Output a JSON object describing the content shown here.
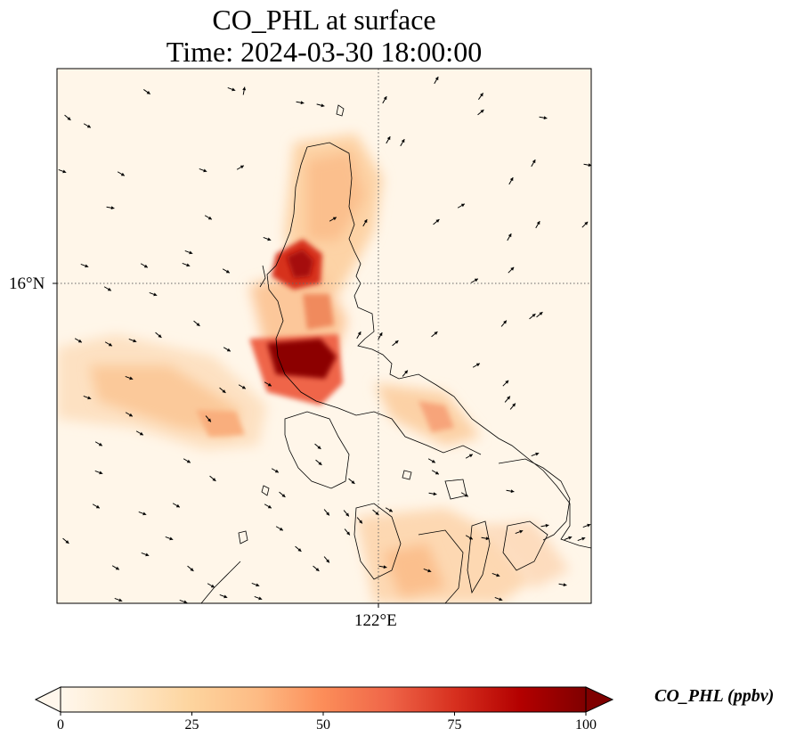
{
  "figure": {
    "title_line1": "CO_PHL at surface",
    "title_line2": "Time: 2024-03-30 18:00:00"
  },
  "map": {
    "variable": "CO_PHL",
    "level": "surface",
    "lat_tick_label": "16°N",
    "lon_tick_label": "122°E",
    "gridlines": "dotted",
    "field_colormap": "OrRd",
    "wind_vectors": "black quiver arrows",
    "coastline_color": "#000000"
  },
  "colorbar": {
    "label": "CO_PHL (ppbv)",
    "ticks": [
      "0",
      "25",
      "50",
      "75",
      "100"
    ],
    "min": 0,
    "max": 100,
    "extend": "both",
    "colors": [
      "#fff7ec",
      "#fee8c8",
      "#fdd49e",
      "#fdbb84",
      "#fc8d59",
      "#ef6548",
      "#d7301f",
      "#b30000",
      "#7f0000"
    ]
  }
}
